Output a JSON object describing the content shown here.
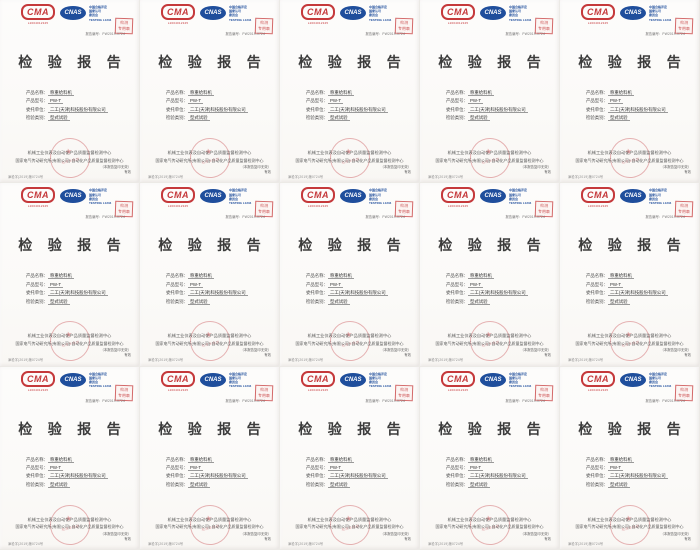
{
  "grid": {
    "cols": 5,
    "rows": 3,
    "tile_count": 15
  },
  "page": {
    "header": {
      "cma": {
        "label": "CMA",
        "sub": "L2004012345"
      },
      "cnas": {
        "label": "CNAS",
        "lines": [
          "中国合格评定",
          "国家认可",
          "委员会",
          "TESTING L1234"
        ]
      },
      "corner_stamp": {
        "line1": "检测",
        "line2": "专用章"
      },
      "report_no": "报告编号：PW2019-0724"
    },
    "title": "检 验 报 告",
    "fields": [
      {
        "label": "产品名称：",
        "value": "称重给料机"
      },
      {
        "label": "产品型号：",
        "value": "PW-T"
      },
      {
        "label": "委托单位：",
        "value": "二工(天津)科技股份有限公司"
      },
      {
        "label": "检验类别：",
        "value": "型式试验"
      }
    ],
    "footer": {
      "org_line1": "机械工业仪表及自动化产品质量监督检测中心",
      "org_line2": "国家电气传动研究所(有限公司)·自动化产品质量监督检测中心",
      "stamp_text": "检测专用章",
      "address": "津检字(2019)第0724号",
      "note1": "（本报告复印无效）",
      "note2": "有效"
    },
    "colors": {
      "cma_red": "#c5393b",
      "cnas_blue": "#1f4e9c",
      "stamp_red": "#cd5a5f",
      "title_ink": "#3c3c3c",
      "paper": "#fcfbf9"
    }
  }
}
